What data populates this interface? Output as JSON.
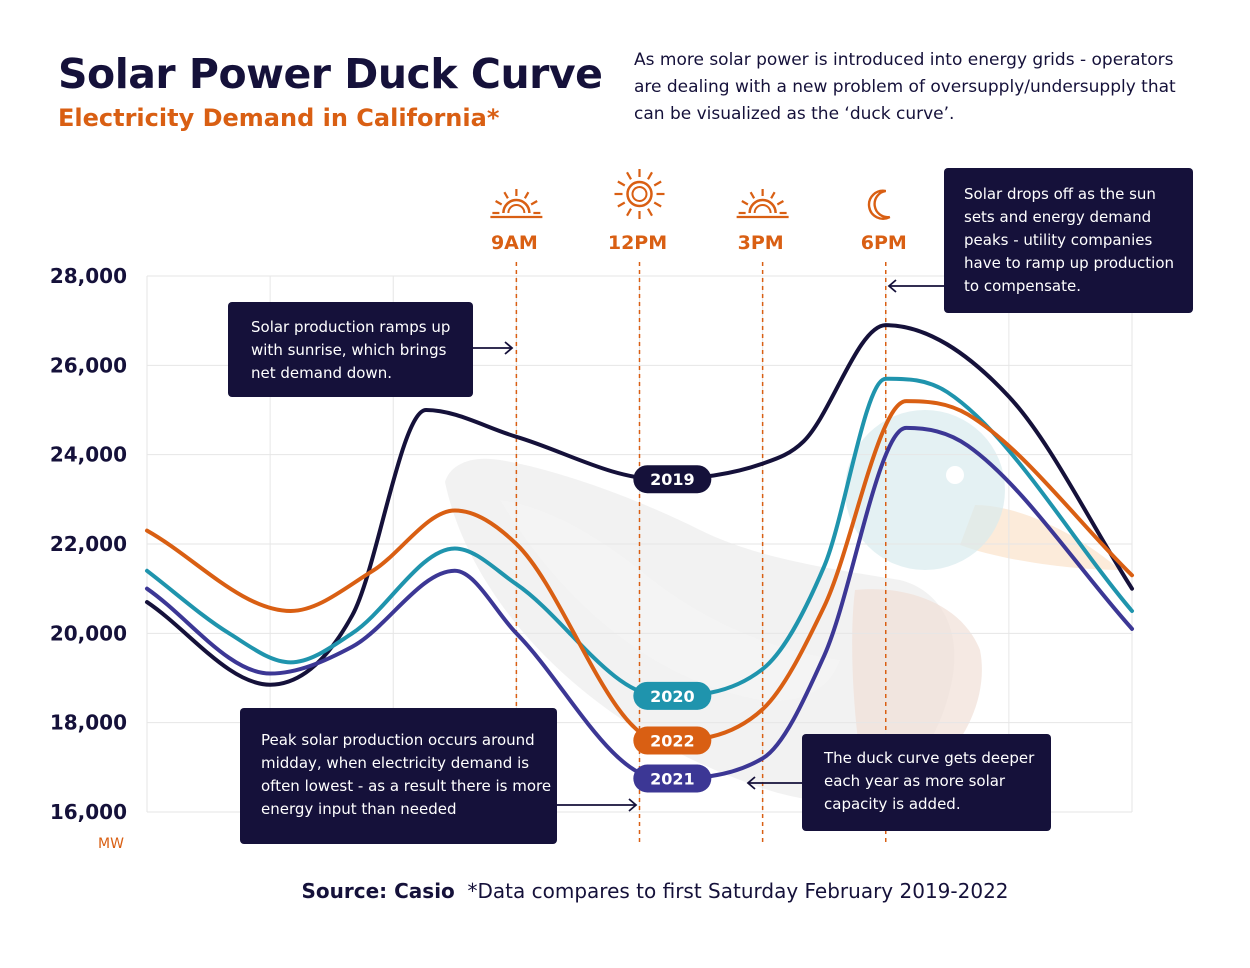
{
  "header": {
    "title": "Solar Power Duck Curve",
    "subtitle": "Electricity Demand in California*",
    "intro_lines": [
      "As more solar power is introduced into energy grids - operators",
      "are dealing with a new problem of oversupply/undersupply that",
      "can be visualized as the ‘duck curve’."
    ]
  },
  "annotations": {
    "sunrise": [
      "Solar production ramps up",
      "with sunrise, which brings",
      "net demand down."
    ],
    "sunset": [
      "Solar drops off as the sun",
      "sets and energy demand",
      "peaks - utility companies",
      "have to ramp up production",
      "to compensate."
    ],
    "midday": [
      "Peak solar production occurs around",
      "midday, when electricity demand is",
      "often lowest - as a result there is more",
      "energy input than needed"
    ],
    "deeper": [
      "The duck curve gets deeper",
      "each year as more solar",
      "capacity is added."
    ]
  },
  "footer": {
    "source_label": "Source: Casio",
    "note": "*Data compares to first Saturday February 2019-2022"
  },
  "colors": {
    "navy": "#15113a",
    "orange": "#d95f13",
    "teal": "#1f94ad",
    "purple": "#3c3795",
    "grid": "#e6e6e6"
  },
  "chart_data": {
    "type": "line",
    "unit": "MW",
    "ylim": [
      16000,
      28000
    ],
    "yticks": [
      16000,
      18000,
      20000,
      22000,
      24000,
      26000,
      28000
    ],
    "ytick_labels": [
      "16,000",
      "18,000",
      "20,000",
      "22,000",
      "24,000",
      "26,000",
      "28,000"
    ],
    "time_markers": [
      {
        "label": "9AM",
        "x": 9,
        "icon": "sunrise-icon"
      },
      {
        "label": "12PM",
        "x": 12,
        "icon": "sun-icon"
      },
      {
        "label": "3PM",
        "x": 15,
        "icon": "sunset-icon"
      },
      {
        "label": "6PM",
        "x": 18,
        "icon": "moon-icon"
      }
    ],
    "grid": true,
    "series": [
      {
        "name": "2019",
        "color": "#15113a",
        "label_at_x": 12.8,
        "points": [
          [
            0,
            20700
          ],
          [
            3,
            18850
          ],
          [
            5,
            20400
          ],
          [
            6.8,
            25000
          ],
          [
            9,
            24400
          ],
          [
            12.5,
            23450
          ],
          [
            15,
            23800
          ],
          [
            16,
            24300
          ],
          [
            18,
            26900
          ],
          [
            21,
            25300
          ],
          [
            24,
            21000
          ]
        ]
      },
      {
        "name": "2020",
        "color": "#1f94ad",
        "label_at_x": 12.8,
        "points": [
          [
            0,
            21400
          ],
          [
            2,
            20000
          ],
          [
            3.5,
            19350
          ],
          [
            5,
            20000
          ],
          [
            7.5,
            21900
          ],
          [
            9,
            21100
          ],
          [
            12.5,
            18600
          ],
          [
            15,
            19200
          ],
          [
            16.5,
            21500
          ],
          [
            18,
            25700
          ],
          [
            19.5,
            25400
          ],
          [
            24,
            20500
          ]
        ]
      },
      {
        "name": "2021",
        "color": "#3c3795",
        "label_at_x": 12.8,
        "points": [
          [
            0,
            21000
          ],
          [
            3,
            19100
          ],
          [
            5,
            19700
          ],
          [
            7.5,
            21400
          ],
          [
            9,
            20000
          ],
          [
            12.5,
            16750
          ],
          [
            15,
            17200
          ],
          [
            16.5,
            19500
          ],
          [
            18.5,
            24600
          ],
          [
            20,
            24200
          ],
          [
            24,
            20100
          ]
        ]
      },
      {
        "name": "2022",
        "color": "#d95f13",
        "label_at_x": 12.8,
        "points": [
          [
            0,
            22300
          ],
          [
            3.5,
            20500
          ],
          [
            5.5,
            21400
          ],
          [
            7.5,
            22750
          ],
          [
            9,
            22000
          ],
          [
            12.5,
            17600
          ],
          [
            15,
            18300
          ],
          [
            16.5,
            20600
          ],
          [
            18.5,
            25200
          ],
          [
            20,
            24900
          ],
          [
            24,
            21300
          ]
        ]
      }
    ]
  }
}
